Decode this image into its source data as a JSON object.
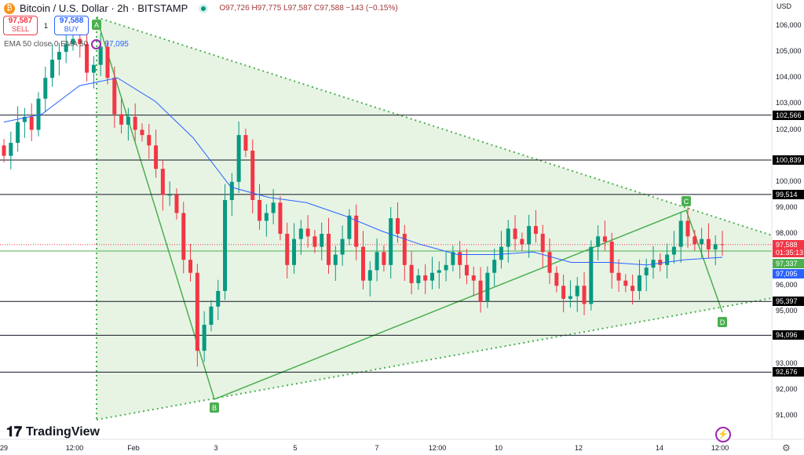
{
  "header": {
    "symbol": "Bitcoin / U.S. Dollar · 2h · BITSTAMP",
    "ohlc": "O97,726 H97,775 L97,587 C97,588 −143 (−0.15%)"
  },
  "trade": {
    "sell_price": "97,587",
    "sell_label": "SELL",
    "qty": "1",
    "buy_price": "97,588",
    "buy_label": "BUY"
  },
  "indicator": {
    "label": "EMA 50 close 0 EMA 50",
    "value": "97,095"
  },
  "currency": "USD",
  "brand": "TradingView",
  "colors": {
    "up": "#089981",
    "down": "#f23645",
    "ema": "#2962ff",
    "pattern_fill": "#e3f2df",
    "pattern_line": "#4caf50"
  },
  "pattern_points": [
    "A",
    "B",
    "C",
    "D"
  ],
  "chart_data": {
    "type": "candlestick",
    "ylim": [
      90500,
      106800
    ],
    "y_ticks": [
      "106,000",
      "105,000",
      "104,000",
      "103,000",
      "102,000",
      "100,000",
      "99,000",
      "98,000",
      "96,000",
      "95,000",
      "93,000",
      "92,000",
      "91,000"
    ],
    "y_tick_values": [
      106000,
      105000,
      104000,
      103000,
      102000,
      100000,
      99000,
      98000,
      96000,
      95000,
      93000,
      92000,
      91000
    ],
    "x_ticks": [
      "29",
      "12:00",
      "Feb",
      "3",
      "5",
      "7",
      "12:00",
      "10",
      "12",
      "14",
      "12:00"
    ],
    "closes": [
      101000,
      101500,
      102300,
      102500,
      102000,
      103200,
      104000,
      104700,
      105000,
      105300,
      105500,
      105300,
      104200,
      104500,
      105200,
      104000,
      102600,
      102200,
      102500,
      102000,
      101800,
      101400,
      100500,
      99500,
      99500,
      98800,
      97000,
      96500,
      93500,
      94500,
      95200,
      95800,
      99300,
      100000,
      101800,
      101200,
      99300,
      98500,
      98800,
      99200,
      98000,
      96800,
      97800,
      98200,
      97900,
      97500,
      98000,
      96800,
      97200,
      97800,
      98700,
      97500,
      96200,
      96600,
      97300,
      96800,
      98600,
      98000,
      96800,
      96100,
      96400,
      96200,
      96500,
      96600,
      96800,
      97300,
      96800,
      96400,
      96200,
      95400,
      96500,
      97000,
      97500,
      98200,
      97800,
      97600,
      98300,
      98000,
      97300,
      96500,
      96000,
      95500,
      95600,
      96000,
      95300,
      97500,
      97900,
      97700,
      96500,
      96200,
      96000,
      95800,
      96400,
      96700,
      97000,
      96800,
      97200,
      97500,
      98500,
      97900,
      97600,
      97800,
      97400,
      97600,
      97588
    ],
    "ema50": [
      102300,
      102600,
      103700,
      104000,
      103100,
      101700,
      99800,
      99400,
      99200,
      98700,
      98100,
      97600,
      97200,
      97200,
      97300,
      96900,
      96900,
      96800,
      97000,
      97095
    ],
    "levels": [
      {
        "value": 102566,
        "label": "102,566"
      },
      {
        "value": 100839,
        "label": "100,839"
      },
      {
        "value": 99514,
        "label": "99,514"
      },
      {
        "value": 95397,
        "label": "95,397"
      },
      {
        "value": 94096,
        "label": "94,096"
      },
      {
        "value": 92676,
        "label": "92,676"
      }
    ],
    "last_price": {
      "value": 97588,
      "label": "97,588",
      "countdown": "01:35:13"
    },
    "green_level": {
      "value": 97337,
      "label": "97,337"
    },
    "ema_label": "97,095"
  }
}
